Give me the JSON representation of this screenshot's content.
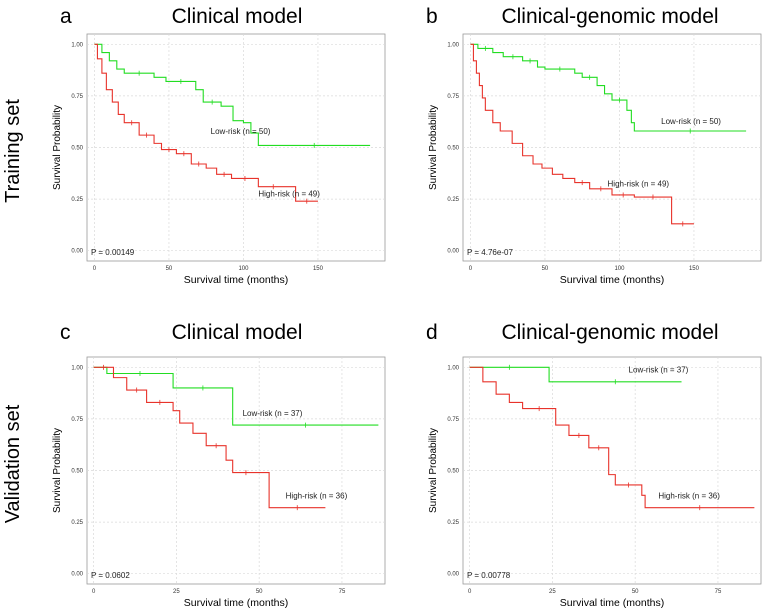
{
  "row_labels": [
    "Training set",
    "Validation set"
  ],
  "colors": {
    "low": "#22dd22",
    "high": "#e8332b",
    "grid": "#d9d9d9",
    "frame": "#999999"
  },
  "chart_data": [
    {
      "letter": "a",
      "title": "Clinical model",
      "type": "line",
      "xlabel": "Survival time (months)",
      "ylabel": "Survival Probability",
      "xlim": [
        -5,
        195
      ],
      "ylim": [
        -0.05,
        1.05
      ],
      "xticks": [
        0,
        50,
        100,
        150
      ],
      "yticks": [
        "0.00",
        "0.25",
        "0.50",
        "0.75",
        "1.00"
      ],
      "pvalue": "P = 0.00149",
      "series": [
        {
          "name": "Low-risk (n = 50)",
          "group": "low",
          "label_at": [
            78,
            0.565
          ],
          "points": [
            [
              0,
              1
            ],
            [
              5,
              0.96
            ],
            [
              10,
              0.92
            ],
            [
              15,
              0.88
            ],
            [
              20,
              0.86
            ],
            [
              40,
              0.84
            ],
            [
              48,
              0.82
            ],
            [
              68,
              0.78
            ],
            [
              73,
              0.72
            ],
            [
              85,
              0.7
            ],
            [
              93,
              0.63
            ],
            [
              100,
              0.62
            ],
            [
              105,
              0.57
            ],
            [
              110,
              0.51
            ],
            [
              185,
              0.51
            ]
          ]
        },
        {
          "name": "High-risk (n = 49)",
          "group": "high",
          "label_at": [
            110,
            0.262
          ],
          "points": [
            [
              0,
              1
            ],
            [
              2,
              0.93
            ],
            [
              5,
              0.86
            ],
            [
              8,
              0.78
            ],
            [
              12,
              0.72
            ],
            [
              16,
              0.66
            ],
            [
              20,
              0.62
            ],
            [
              30,
              0.56
            ],
            [
              40,
              0.52
            ],
            [
              45,
              0.49
            ],
            [
              55,
              0.47
            ],
            [
              65,
              0.42
            ],
            [
              75,
              0.4
            ],
            [
              82,
              0.37
            ],
            [
              92,
              0.35
            ],
            [
              110,
              0.31
            ],
            [
              130,
              0.31
            ],
            [
              135,
              0.24
            ],
            [
              150,
              0.24
            ]
          ]
        }
      ]
    },
    {
      "letter": "b",
      "title": "Clinical-genomic model",
      "type": "line",
      "xlabel": "Survival time (months)",
      "ylabel": "Survival Probability",
      "xlim": [
        -5,
        195
      ],
      "ylim": [
        -0.05,
        1.05
      ],
      "xticks": [
        0,
        50,
        100,
        150
      ],
      "yticks": [
        "0.00",
        "0.25",
        "0.50",
        "0.75",
        "1.00"
      ],
      "pvalue": "P = 4.76e-07",
      "series": [
        {
          "name": "Low-risk (n = 50)",
          "group": "low",
          "label_at": [
            128,
            0.615
          ],
          "points": [
            [
              0,
              1
            ],
            [
              5,
              0.98
            ],
            [
              15,
              0.96
            ],
            [
              22,
              0.94
            ],
            [
              35,
              0.92
            ],
            [
              45,
              0.89
            ],
            [
              50,
              0.88
            ],
            [
              70,
              0.86
            ],
            [
              75,
              0.84
            ],
            [
              85,
              0.8
            ],
            [
              90,
              0.76
            ],
            [
              95,
              0.73
            ],
            [
              105,
              0.68
            ],
            [
              108,
              0.62
            ],
            [
              110,
              0.58
            ],
            [
              185,
              0.58
            ]
          ]
        },
        {
          "name": "High-risk (n = 49)",
          "group": "high",
          "label_at": [
            92,
            0.31
          ],
          "points": [
            [
              0,
              1
            ],
            [
              2,
              0.92
            ],
            [
              4,
              0.86
            ],
            [
              6,
              0.8
            ],
            [
              8,
              0.74
            ],
            [
              10,
              0.68
            ],
            [
              15,
              0.62
            ],
            [
              20,
              0.58
            ],
            [
              28,
              0.52
            ],
            [
              35,
              0.46
            ],
            [
              42,
              0.42
            ],
            [
              48,
              0.4
            ],
            [
              55,
              0.37
            ],
            [
              62,
              0.35
            ],
            [
              70,
              0.33
            ],
            [
              80,
              0.3
            ],
            [
              95,
              0.27
            ],
            [
              110,
              0.26
            ],
            [
              135,
              0.26
            ],
            [
              135,
              0.13
            ],
            [
              150,
              0.13
            ]
          ]
        }
      ]
    },
    {
      "letter": "c",
      "title": "Clinical model",
      "type": "line",
      "xlabel": "Survival time (months)",
      "ylabel": "Survival Probability",
      "xlim": [
        -2,
        88
      ],
      "ylim": [
        -0.05,
        1.05
      ],
      "xticks": [
        0,
        25,
        50,
        75
      ],
      "yticks": [
        "0.00",
        "0.25",
        "0.50",
        "0.75",
        "1.00"
      ],
      "pvalue": "P = 0.0602",
      "series": [
        {
          "name": "Low-risk (n = 37)",
          "group": "low",
          "label_at": [
            45,
            0.765
          ],
          "points": [
            [
              0,
              1
            ],
            [
              4,
              0.97
            ],
            [
              24,
              0.9
            ],
            [
              42,
              0.72
            ],
            [
              86,
              0.72
            ]
          ]
        },
        {
          "name": "High-risk (n = 36)",
          "group": "high",
          "label_at": [
            58,
            0.365
          ],
          "points": [
            [
              0,
              1
            ],
            [
              6,
              0.95
            ],
            [
              10,
              0.89
            ],
            [
              16,
              0.83
            ],
            [
              24,
              0.79
            ],
            [
              26,
              0.73
            ],
            [
              30,
              0.68
            ],
            [
              34,
              0.62
            ],
            [
              40,
              0.55
            ],
            [
              42,
              0.49
            ],
            [
              50,
              0.49
            ],
            [
              53,
              0.32
            ],
            [
              70,
              0.32
            ]
          ]
        }
      ]
    },
    {
      "letter": "d",
      "title": "Clinical-genomic model",
      "type": "line",
      "xlabel": "Survival time (months)",
      "ylabel": "Survival Probability",
      "xlim": [
        -2,
        88
      ],
      "ylim": [
        -0.05,
        1.05
      ],
      "xticks": [
        0,
        25,
        50,
        75
      ],
      "yticks": [
        "0.00",
        "0.25",
        "0.50",
        "0.75",
        "1.00"
      ],
      "pvalue": "P = 0.00778",
      "series": [
        {
          "name": "Low-risk (n = 37)",
          "group": "low",
          "label_at": [
            48,
            0.975
          ],
          "points": [
            [
              0,
              1
            ],
            [
              24,
              0.93
            ],
            [
              64,
              0.93
            ]
          ]
        },
        {
          "name": "High-risk (n = 36)",
          "group": "high",
          "label_at": [
            57,
            0.365
          ],
          "points": [
            [
              0,
              1
            ],
            [
              4,
              0.93
            ],
            [
              8,
              0.87
            ],
            [
              12,
              0.83
            ],
            [
              16,
              0.8
            ],
            [
              26,
              0.72
            ],
            [
              30,
              0.67
            ],
            [
              36,
              0.61
            ],
            [
              42,
              0.48
            ],
            [
              44,
              0.43
            ],
            [
              52,
              0.38
            ],
            [
              53,
              0.32
            ],
            [
              86,
              0.32
            ]
          ]
        }
      ]
    }
  ]
}
